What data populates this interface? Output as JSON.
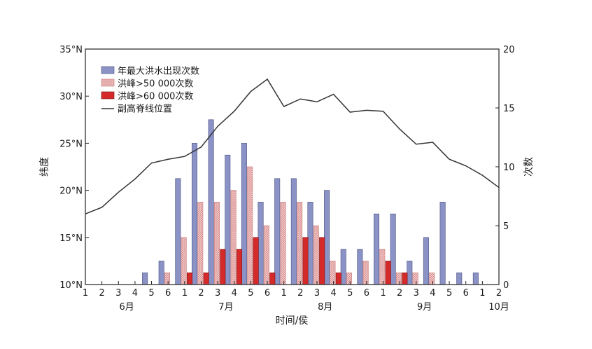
{
  "chart_data": {
    "type": "bar",
    "title": "",
    "xlabel": "时间/侯",
    "ylabel_left": "纬度",
    "ylabel_right": "次数",
    "ylim_left": [
      10,
      35
    ],
    "ylim_right": [
      0,
      20
    ],
    "yticks_left": [
      "10°N",
      "15°N",
      "20°N",
      "25°N",
      "30°N",
      "35°N"
    ],
    "yticks_right": [
      "0",
      "5",
      "10",
      "15",
      "20"
    ],
    "categories": [
      "1",
      "2",
      "3",
      "4",
      "5",
      "6",
      "1",
      "2",
      "3",
      "4",
      "5",
      "6",
      "1",
      "2",
      "3",
      "4",
      "5",
      "6",
      "1",
      "2",
      "3",
      "4",
      "5",
      "6",
      "1",
      "2"
    ],
    "month_labels": [
      {
        "label": "6月",
        "center_index": 2.5
      },
      {
        "label": "7月",
        "center_index": 8.5
      },
      {
        "label": "8月",
        "center_index": 14.5
      },
      {
        "label": "9月",
        "center_index": 20.5
      },
      {
        "label": "10月",
        "center_index": 25
      }
    ],
    "legend_position": "top-left",
    "series": [
      {
        "name": "年最大洪水出现次数",
        "kind": "bar",
        "axis": "right",
        "color": "#8a92c6",
        "values": [
          0,
          0,
          0,
          0,
          1,
          2,
          9,
          12,
          14,
          11,
          12,
          7,
          9,
          9,
          7,
          8,
          3,
          3,
          6,
          6,
          2,
          4,
          7,
          1,
          1,
          0
        ]
      },
      {
        "name": "洪峰>50 000次数",
        "kind": "bar-hatched",
        "axis": "right",
        "color": "#f2c4c4",
        "values": [
          0,
          0,
          0,
          0,
          0,
          1,
          4,
          7,
          7,
          8,
          10,
          5,
          7,
          7,
          5,
          2,
          1,
          2,
          3,
          1,
          1,
          1,
          0,
          0,
          0,
          0
        ]
      },
      {
        "name": "洪峰>60 000次数",
        "kind": "bar",
        "axis": "right",
        "color": "#d42a2a",
        "values": [
          0,
          0,
          0,
          0,
          0,
          0,
          1,
          1,
          3,
          3,
          4,
          1,
          0,
          4,
          4,
          1,
          0,
          0,
          2,
          1,
          0,
          0,
          0,
          0,
          0,
          0
        ]
      },
      {
        "name": "副高脊线位置",
        "kind": "line",
        "axis": "left",
        "color": "#333333",
        "values": [
          17.5,
          18.2,
          19.8,
          21.2,
          22.9,
          23.3,
          23.6,
          24.6,
          26.8,
          28.4,
          30.5,
          31.8,
          28.9,
          29.7,
          29.4,
          30.2,
          28.3,
          28.5,
          28.4,
          26.5,
          24.9,
          25.1,
          23.3,
          22.6,
          21.6,
          20.3
        ]
      }
    ]
  }
}
